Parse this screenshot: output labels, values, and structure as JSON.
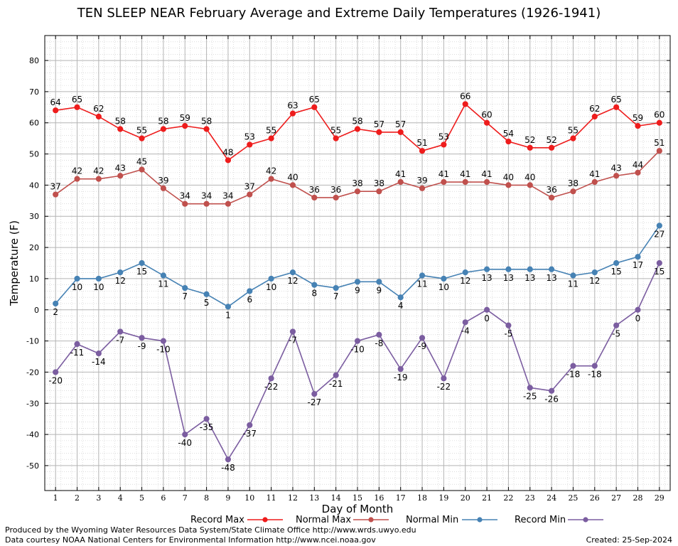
{
  "chart_data": {
    "type": "line",
    "title": "TEN SLEEP NEAR February Average and Extreme Daily Temperatures (1926-1941)",
    "xlabel": "Day of Month",
    "ylabel": "Temperature (F)",
    "ylim": [
      -58,
      88
    ],
    "xlim": [
      0.5,
      29.5
    ],
    "yticks": [
      -50,
      -40,
      -30,
      -20,
      -10,
      0,
      10,
      20,
      30,
      40,
      50,
      60,
      70,
      80
    ],
    "x": [
      1,
      2,
      3,
      4,
      5,
      6,
      7,
      8,
      9,
      10,
      11,
      12,
      13,
      14,
      15,
      16,
      17,
      18,
      19,
      20,
      21,
      22,
      23,
      24,
      25,
      26,
      27,
      28,
      29
    ],
    "grid": true,
    "legend_position": "bottom",
    "series": [
      {
        "name": "Record Max",
        "color": "#ee1c1c",
        "values": [
          64,
          65,
          62,
          58,
          55,
          58,
          59,
          58,
          48,
          53,
          55,
          63,
          65,
          55,
          58,
          57,
          57,
          51,
          53,
          66,
          60,
          54,
          52,
          52,
          55,
          62,
          65,
          59,
          60
        ],
        "label_position": "above"
      },
      {
        "name": "Normal Max",
        "color": "#c0504d",
        "values": [
          37,
          42,
          42,
          43,
          45,
          39,
          34,
          34,
          34,
          37,
          42,
          40,
          36,
          36,
          38,
          38,
          41,
          39,
          41,
          41,
          41,
          40,
          40,
          36,
          38,
          41,
          43,
          44,
          51
        ],
        "label_position": "above"
      },
      {
        "name": "Normal Min",
        "color": "#4682b4",
        "values": [
          2,
          10,
          10,
          12,
          15,
          11,
          7,
          5,
          1,
          6,
          10,
          12,
          8,
          7,
          9,
          9,
          4,
          11,
          10,
          12,
          13,
          13,
          13,
          13,
          11,
          12,
          15,
          17,
          27
        ],
        "label_position": "below"
      },
      {
        "name": "Record Min",
        "color": "#7b5da0",
        "values": [
          -20,
          -11,
          -14,
          -7,
          -9,
          -10,
          -40,
          -35,
          -48,
          -37,
          -22,
          -7,
          -27,
          -21,
          -10,
          -8,
          -19,
          -9,
          -22,
          -4,
          0,
          -5,
          -25,
          -26,
          -18,
          -18,
          -5,
          0,
          15
        ],
        "label_position": "below"
      }
    ]
  },
  "footer": {
    "produced_by": "Produced by the Wyoming Water Resources Data System/State Climate Office http://www.wrds.uwyo.edu",
    "courtesy": "Data courtesy NOAA National Centers for Environmental Information http://www.ncei.noaa.gov",
    "created": "Created:  25-Sep-2024"
  }
}
